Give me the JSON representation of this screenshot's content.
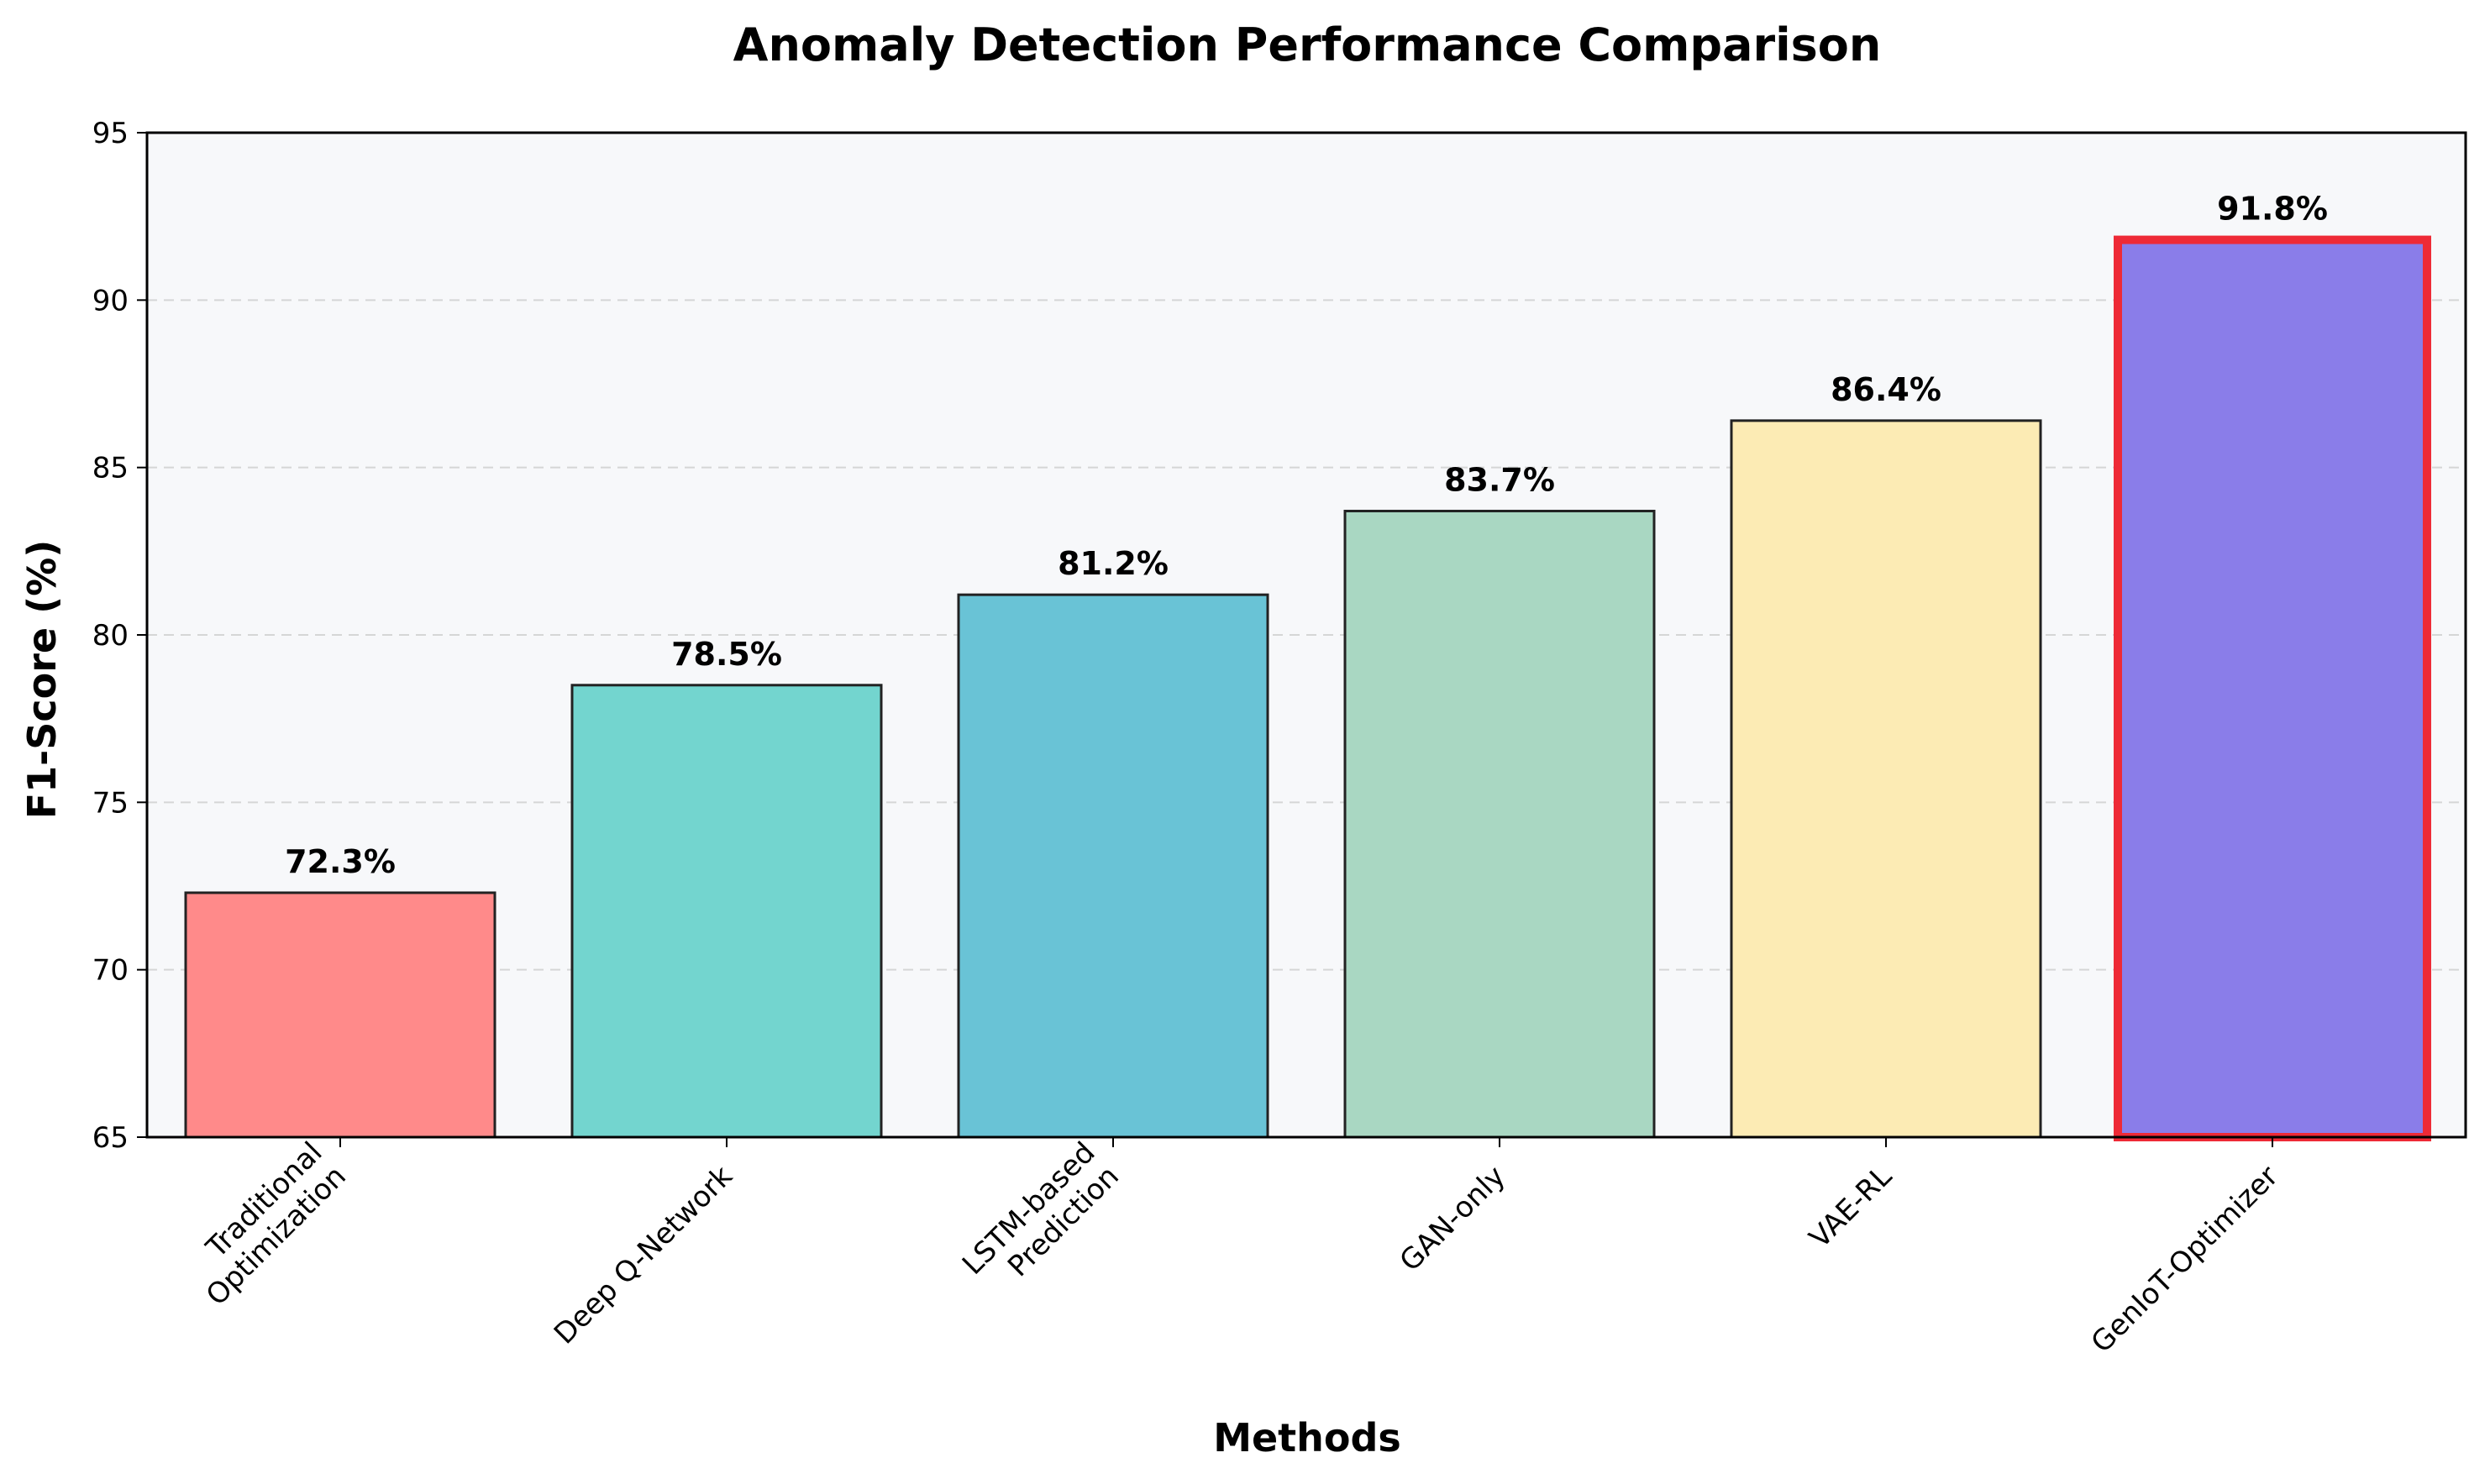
{
  "chart_data": {
    "type": "bar",
    "title": "Anomaly Detection Performance Comparison",
    "xlabel": "Methods",
    "ylabel": "F1-Score (%)",
    "ylim": [
      65,
      95
    ],
    "yticks": [
      65,
      70,
      75,
      80,
      85,
      90,
      95
    ],
    "grid": "y-dashed",
    "categories": [
      [
        "Traditional",
        "Optimization"
      ],
      [
        "Deep Q-Network"
      ],
      [
        "LSTM-based",
        "Prediction"
      ],
      [
        "GAN-only"
      ],
      [
        "VAE-RL"
      ],
      [
        "GenIoT-Optimizer"
      ]
    ],
    "values": [
      72.3,
      78.5,
      81.2,
      83.7,
      86.4,
      91.8
    ],
    "value_labels": [
      "72.3%",
      "78.5%",
      "81.2%",
      "83.7%",
      "86.4%",
      "91.8%"
    ],
    "colors": [
      "#FF8A8A",
      "#73D5CF",
      "#69C3D6",
      "#A9D7C2",
      "#FCEBB4",
      "#8A7DE9"
    ],
    "highlight_index": 5,
    "highlight_edge_color": "#EE2A36",
    "edge_color": "#222222",
    "plot_background": "#F7F8FA"
  }
}
